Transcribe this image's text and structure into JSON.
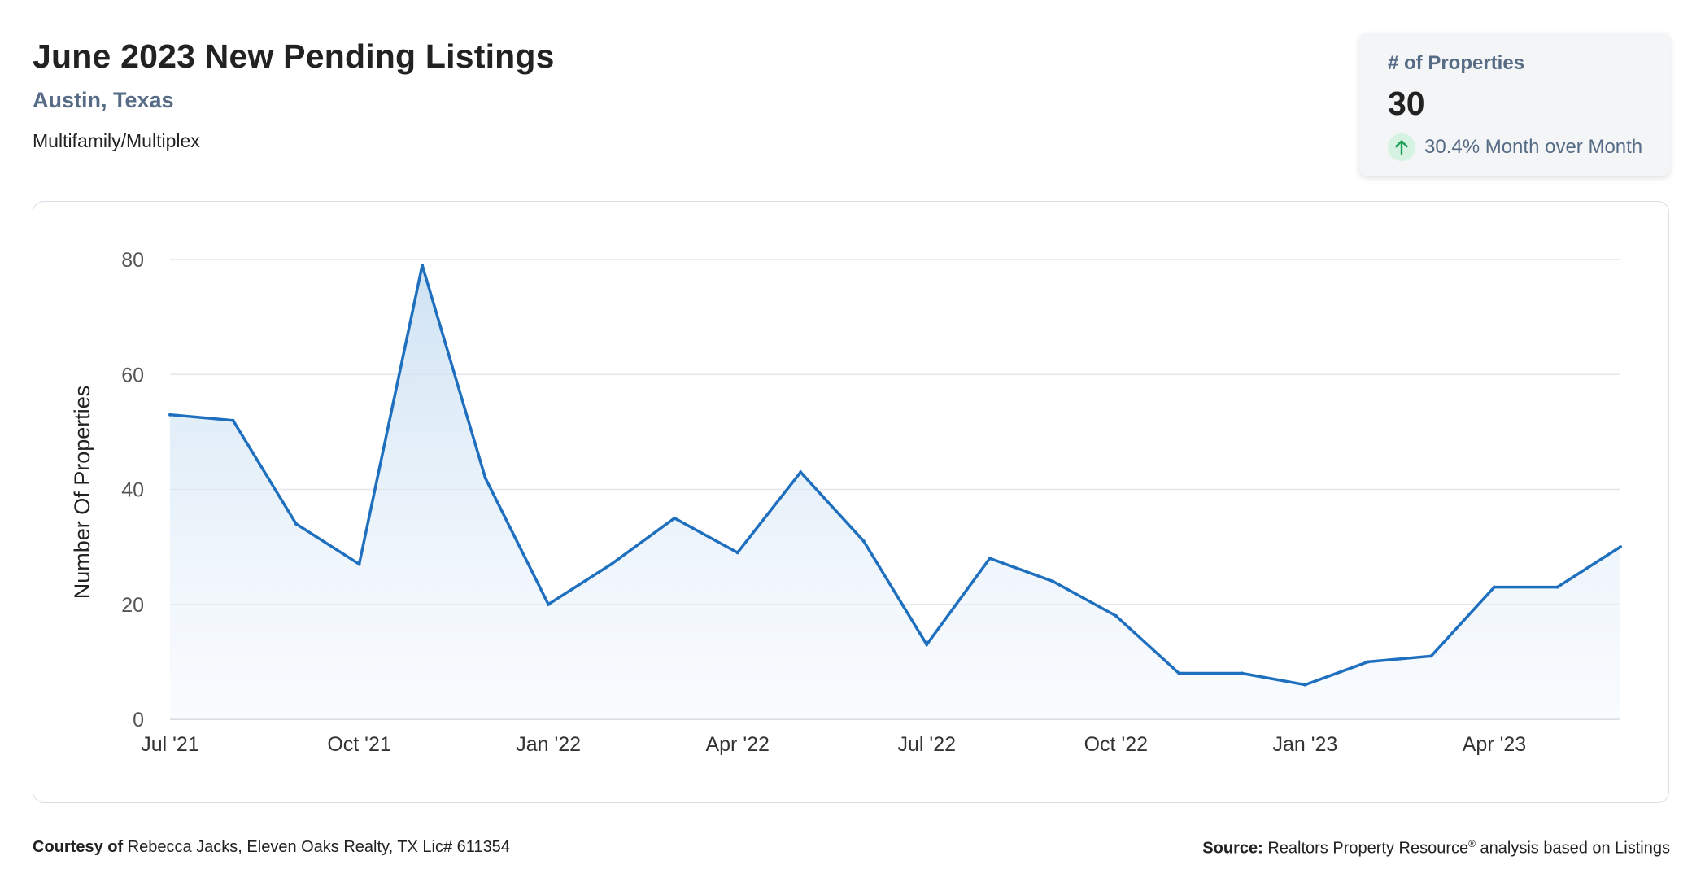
{
  "header": {
    "title": "June 2023 New Pending Listings",
    "location": "Austin, Texas",
    "property_type": "Multifamily/Multiplex"
  },
  "stat_card": {
    "label": "# of Properties",
    "value": "30",
    "change": "30.4% Month over Month",
    "change_direction": "up",
    "change_color": "#1e9e57"
  },
  "chart_data": {
    "type": "area",
    "ylabel": "Number Of Properties",
    "xlabel": "",
    "ylim": [
      0,
      80
    ],
    "yticks": [
      0,
      20,
      40,
      60,
      80
    ],
    "grid": true,
    "x": [
      "2021-07",
      "2021-08",
      "2021-09",
      "2021-10",
      "2021-11",
      "2021-12",
      "2022-01",
      "2022-02",
      "2022-03",
      "2022-04",
      "2022-05",
      "2022-06",
      "2022-07",
      "2022-08",
      "2022-09",
      "2022-10",
      "2022-11",
      "2022-12",
      "2023-01",
      "2023-02",
      "2023-03",
      "2023-04",
      "2023-05",
      "2023-06"
    ],
    "values": [
      53,
      52,
      34,
      27,
      79,
      42,
      20,
      27,
      35,
      29,
      43,
      31,
      13,
      28,
      24,
      18,
      8,
      8,
      6,
      10,
      11,
      23,
      23,
      30
    ],
    "xtick_labels": [
      {
        "x": "2021-07",
        "label": "Jul '21"
      },
      {
        "x": "2021-10",
        "label": "Oct '21"
      },
      {
        "x": "2022-01",
        "label": "Jan '22"
      },
      {
        "x": "2022-04",
        "label": "Apr '22"
      },
      {
        "x": "2022-07",
        "label": "Jul '22"
      },
      {
        "x": "2022-10",
        "label": "Oct '22"
      },
      {
        "x": "2023-01",
        "label": "Jan '23"
      },
      {
        "x": "2023-04",
        "label": "Apr '23"
      }
    ],
    "line_color": "#1f6fbf",
    "fill_color": "#cfe2f3"
  },
  "footer": {
    "courtesy_label": "Courtesy of",
    "courtesy_text": "Rebecca Jacks, Eleven Oaks Realty, TX Lic# 611354",
    "source_label": "Source:",
    "source_text": "Realtors Property Resource",
    "source_mark": "®",
    "source_suffix": "analysis based on Listings"
  }
}
